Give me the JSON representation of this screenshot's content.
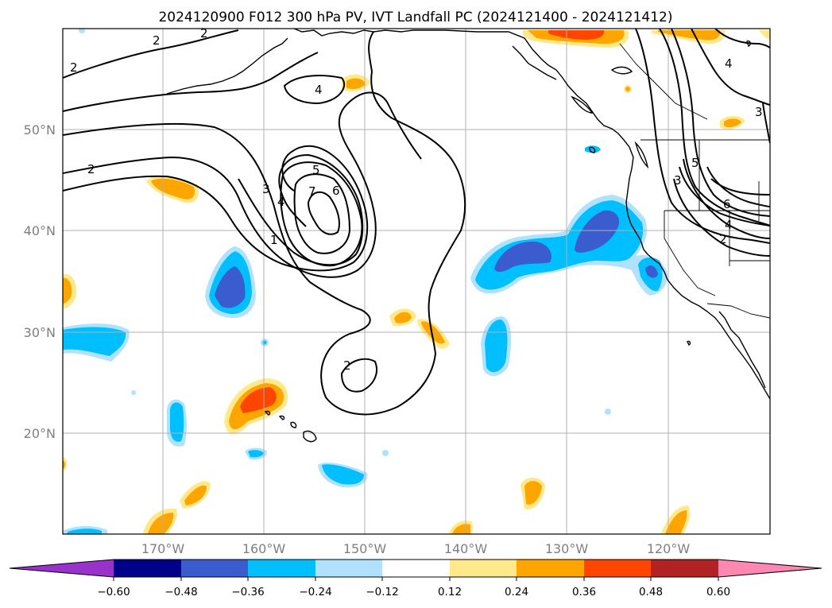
{
  "title": "2024120900 F012 300 hPa PV, IVT Landfall PC (2024121400 - 2024121412)",
  "lat_labels": [
    "50°N",
    "40°N",
    "30°N",
    "20°N"
  ],
  "lon_labels": [
    "170°W",
    "160°W",
    "150°W",
    "140°W",
    "130°W",
    "120°W"
  ],
  "map_extent": {
    "lon_min": -180,
    "lon_max": -110,
    "lat_min": 10,
    "lat_max": 60
  },
  "colorbar": {
    "ticks": [
      "−0.60",
      "−0.48",
      "−0.36",
      "−0.24",
      "−0.12",
      "0.12",
      "0.24",
      "0.36",
      "0.48",
      "0.60"
    ],
    "colors": [
      "#9932cc",
      "#00008b",
      "#3a5ccf",
      "#00bfff",
      "#b0e2ff",
      "#ffffff",
      "#ffe98a",
      "#ffa500",
      "#ff4500",
      "#b22222",
      "#ff88b2"
    ]
  },
  "pv_contour_labels": [
    "2",
    "3",
    "2",
    "4",
    "2",
    "5",
    "7",
    "6",
    "3",
    "4",
    "1",
    "2",
    "5",
    "6",
    "4",
    "2",
    "3",
    "4",
    "3"
  ],
  "colors": {
    "neg_strong": "#3a5ccf",
    "neg_mid": "#00bfff",
    "neg_weak": "#b0e2ff",
    "pos_weak": "#ffe98a",
    "pos_mid": "#ffa500",
    "pos_strong": "#ff4500"
  }
}
